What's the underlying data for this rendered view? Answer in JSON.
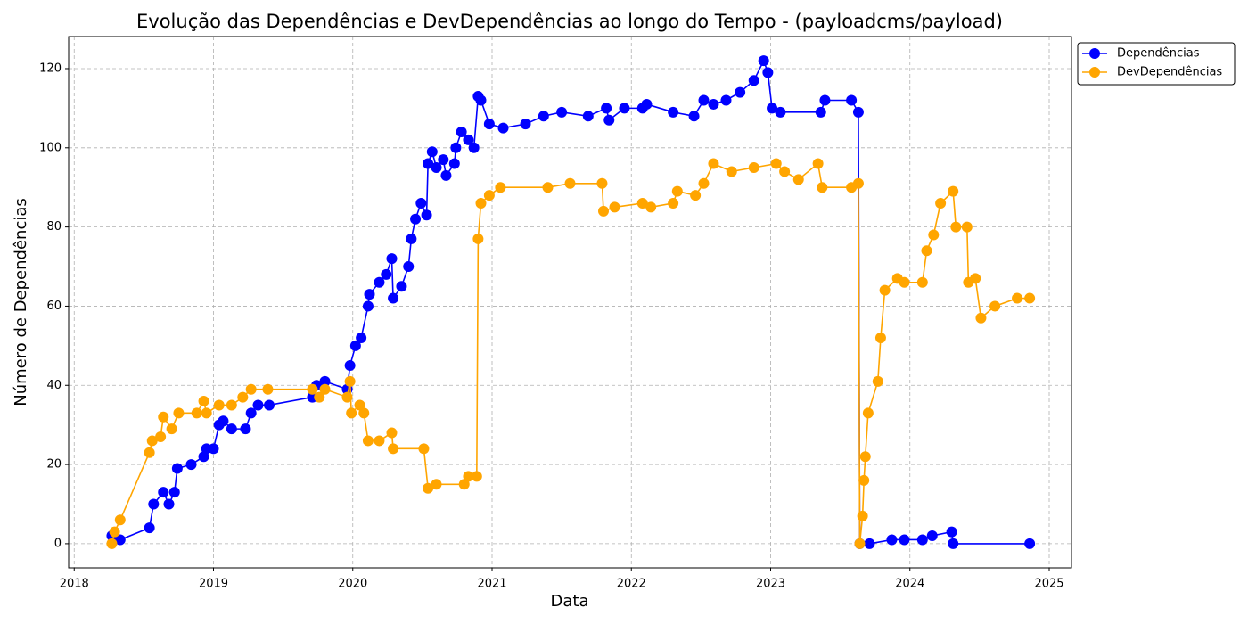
{
  "chart_data": {
    "type": "line",
    "title": "Evolução das Dependências e DevDependências ao longo do Tempo - (payloadcms/payload)",
    "x_label": "Data",
    "y_label": "Número de Dependências",
    "xlim": [
      2017.96,
      2025.16
    ],
    "ylim": [
      -6.1,
      128.1
    ],
    "xticks": [
      2018,
      2019,
      2020,
      2021,
      2022,
      2023,
      2024,
      2025
    ],
    "yticks": [
      0,
      20,
      40,
      60,
      80,
      100,
      120
    ],
    "grid": true,
    "legend": "outside upper right",
    "series": [
      {
        "name": "Dependências",
        "color": "#0000ff",
        "x": [
          2018.27,
          2018.33,
          2018.54,
          2018.57,
          2018.64,
          2018.68,
          2018.72,
          2018.74,
          2018.84,
          2018.93,
          2018.95,
          2019.0,
          2019.04,
          2019.07,
          2019.13,
          2019.23,
          2019.27,
          2019.32,
          2019.4,
          2019.71,
          2019.74,
          2019.8,
          2019.96,
          2019.98,
          2020.02,
          2020.06,
          2020.11,
          2020.12,
          2020.19,
          2020.24,
          2020.28,
          2020.29,
          2020.35,
          2020.4,
          2020.42,
          2020.45,
          2020.49,
          2020.53,
          2020.54,
          2020.57,
          2020.6,
          2020.65,
          2020.67,
          2020.73,
          2020.74,
          2020.78,
          2020.83,
          2020.87,
          2020.9,
          2020.92,
          2020.98,
          2021.08,
          2021.24,
          2021.37,
          2021.5,
          2021.69,
          2021.82,
          2021.84,
          2021.95,
          2022.08,
          2022.11,
          2022.3,
          2022.45,
          2022.52,
          2022.59,
          2022.68,
          2022.78,
          2022.88,
          2022.95,
          2022.98,
          2023.01,
          2023.07,
          2023.36,
          2023.39,
          2023.58,
          2023.63,
          2023.64,
          2023.71,
          2023.87,
          2023.96,
          2024.09,
          2024.16,
          2024.3,
          2024.31,
          2024.86
        ],
        "values": [
          2,
          1,
          4,
          10,
          13,
          10,
          13,
          19,
          20,
          22,
          24,
          24,
          30,
          31,
          29,
          29,
          33,
          35,
          35,
          37,
          40,
          41,
          39,
          45,
          50,
          52,
          60,
          63,
          66,
          68,
          72,
          62,
          65,
          70,
          77,
          82,
          86,
          83,
          96,
          99,
          95,
          97,
          93,
          96,
          100,
          104,
          102,
          100,
          113,
          112,
          106,
          105,
          106,
          108,
          109,
          108,
          110,
          107,
          110,
          110,
          111,
          109,
          108,
          112,
          111,
          112,
          114,
          117,
          122,
          119,
          110,
          109,
          109,
          112,
          112,
          109,
          0,
          0,
          1,
          1,
          1,
          2,
          3,
          0,
          0
        ]
      },
      {
        "name": "DevDependências",
        "color": "#ffa500",
        "x": [
          2018.27,
          2018.29,
          2018.33,
          2018.54,
          2018.56,
          2018.62,
          2018.64,
          2018.7,
          2018.75,
          2018.88,
          2018.93,
          2018.95,
          2019.04,
          2019.13,
          2019.21,
          2019.27,
          2019.39,
          2019.71,
          2019.76,
          2019.8,
          2019.96,
          2019.98,
          2019.99,
          2020.05,
          2020.08,
          2020.11,
          2020.19,
          2020.28,
          2020.29,
          2020.51,
          2020.54,
          2020.6,
          2020.8,
          2020.83,
          2020.89,
          2020.9,
          2020.92,
          2020.98,
          2021.06,
          2021.4,
          2021.56,
          2021.79,
          2021.8,
          2021.88,
          2022.08,
          2022.14,
          2022.3,
          2022.33,
          2022.46,
          2022.52,
          2022.59,
          2022.72,
          2022.88,
          2023.04,
          2023.1,
          2023.2,
          2023.34,
          2023.37,
          2023.58,
          2023.63,
          2023.64,
          2023.66,
          2023.67,
          2023.68,
          2023.7,
          2023.77,
          2023.79,
          2023.82,
          2023.91,
          2023.96,
          2024.09,
          2024.12,
          2024.17,
          2024.22,
          2024.31,
          2024.33,
          2024.41,
          2024.42,
          2024.47,
          2024.51,
          2024.61,
          2024.77,
          2024.86
        ],
        "values": [
          0,
          3,
          6,
          23,
          26,
          27,
          32,
          29,
          33,
          33,
          36,
          33,
          35,
          35,
          37,
          39,
          39,
          39,
          37,
          39,
          37,
          41,
          33,
          35,
          33,
          26,
          26,
          28,
          24,
          24,
          14,
          15,
          15,
          17,
          17,
          77,
          86,
          88,
          90,
          90,
          91,
          91,
          84,
          85,
          86,
          85,
          86,
          89,
          88,
          91,
          96,
          94,
          95,
          96,
          94,
          92,
          96,
          90,
          90,
          91,
          0,
          7,
          16,
          22,
          33,
          41,
          52,
          64,
          67,
          66,
          66,
          74,
          78,
          86,
          89,
          80,
          80,
          66,
          67,
          57,
          60,
          62,
          62
        ]
      }
    ]
  }
}
